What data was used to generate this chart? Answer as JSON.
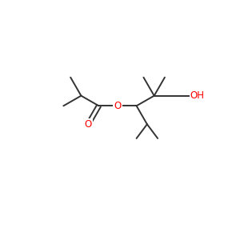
{
  "bg_color": "#ffffff",
  "line_color": "#333333",
  "red_color": "#ff0000",
  "line_width": 1.4,
  "figsize": [
    3.0,
    3.0
  ],
  "dpi": 100,
  "xlim": [
    0,
    10
  ],
  "ylim": [
    0,
    10
  ]
}
